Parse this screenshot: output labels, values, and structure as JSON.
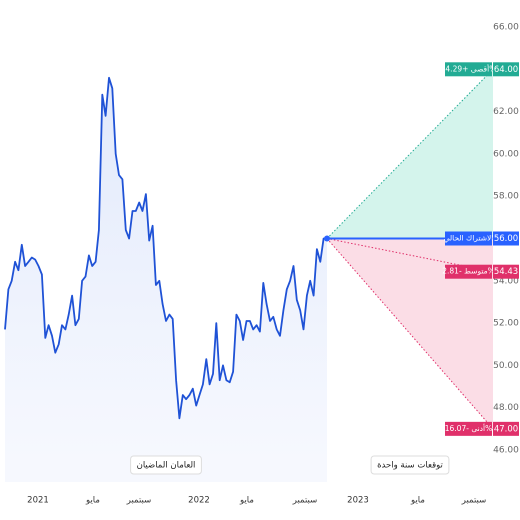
{
  "chart_data": {
    "type": "line",
    "series": [
      {
        "name": "العامان الماضيان",
        "color": "#1f52d6",
        "values": [
          51.7,
          53.6,
          54.0,
          54.9,
          54.5,
          55.7,
          54.7,
          54.9,
          55.1,
          55.0,
          54.7,
          54.3,
          51.3,
          51.9,
          51.4,
          50.6,
          51.0,
          51.9,
          51.7,
          52.4,
          53.3,
          51.9,
          52.2,
          54.0,
          54.2,
          55.2,
          54.7,
          54.9,
          56.4,
          62.8,
          61.8,
          63.6,
          63.1,
          60.0,
          59.0,
          58.8,
          56.4,
          56.0,
          57.3,
          57.3,
          57.7,
          57.3,
          58.1,
          55.9,
          56.6,
          53.8,
          54.0,
          52.9,
          52.1,
          52.4,
          52.2,
          49.3,
          47.5,
          48.6,
          48.4,
          48.6,
          48.9,
          48.1,
          48.6,
          49.1,
          50.3,
          49.1,
          49.6,
          52.0,
          49.3,
          50.0,
          49.3,
          49.2,
          49.7,
          52.4,
          52.1,
          51.2,
          52.1,
          52.1,
          51.7,
          51.9,
          51.6,
          53.9,
          52.9,
          52.1,
          52.3,
          51.7,
          51.4,
          52.6,
          53.6,
          54.0,
          54.7,
          53.1,
          52.6,
          51.7,
          53.3,
          54.0,
          53.3,
          55.5,
          54.9,
          56.0,
          56.0
        ]
      }
    ],
    "forecast_title": "توقعات سنة واحدة",
    "current": {
      "label": "الاشتراك الحالي",
      "value": 56,
      "value_label": "56.00",
      "color": "#2962ff"
    },
    "targets": [
      {
        "label": "أقصى +14.29%",
        "value": 64,
        "value_label": "64.00",
        "color": "#22ab94",
        "fill": "#d4f4ec"
      },
      {
        "label": "متوسط -2.81%",
        "value": 54.43,
        "value_label": "54.43",
        "color": "#e0306a"
      },
      {
        "label": "أدنى -16.07%",
        "value": 47,
        "value_label": "47.00",
        "color": "#e0306a",
        "fill": "#fbdde6"
      }
    ],
    "xtick_labels": [
      "2021",
      "مايو",
      "سبتمبر",
      "2022",
      "مايو",
      "سبتمبر",
      "2023",
      "مايو",
      "سبتمبر"
    ],
    "ylim": [
      46,
      66
    ],
    "yticks": [
      {
        "value": 66,
        "label": "66.00"
      },
      {
        "value": 62,
        "label": "62.00"
      },
      {
        "value": 60,
        "label": "60.00"
      },
      {
        "value": 58,
        "label": "58.00"
      },
      {
        "value": 54,
        "label": "54.00"
      },
      {
        "value": 52,
        "label": "52.00"
      },
      {
        "value": 50,
        "label": "50.00"
      },
      {
        "value": 48,
        "label": "48.00"
      },
      {
        "value": 46,
        "label": "46.00"
      }
    ]
  }
}
